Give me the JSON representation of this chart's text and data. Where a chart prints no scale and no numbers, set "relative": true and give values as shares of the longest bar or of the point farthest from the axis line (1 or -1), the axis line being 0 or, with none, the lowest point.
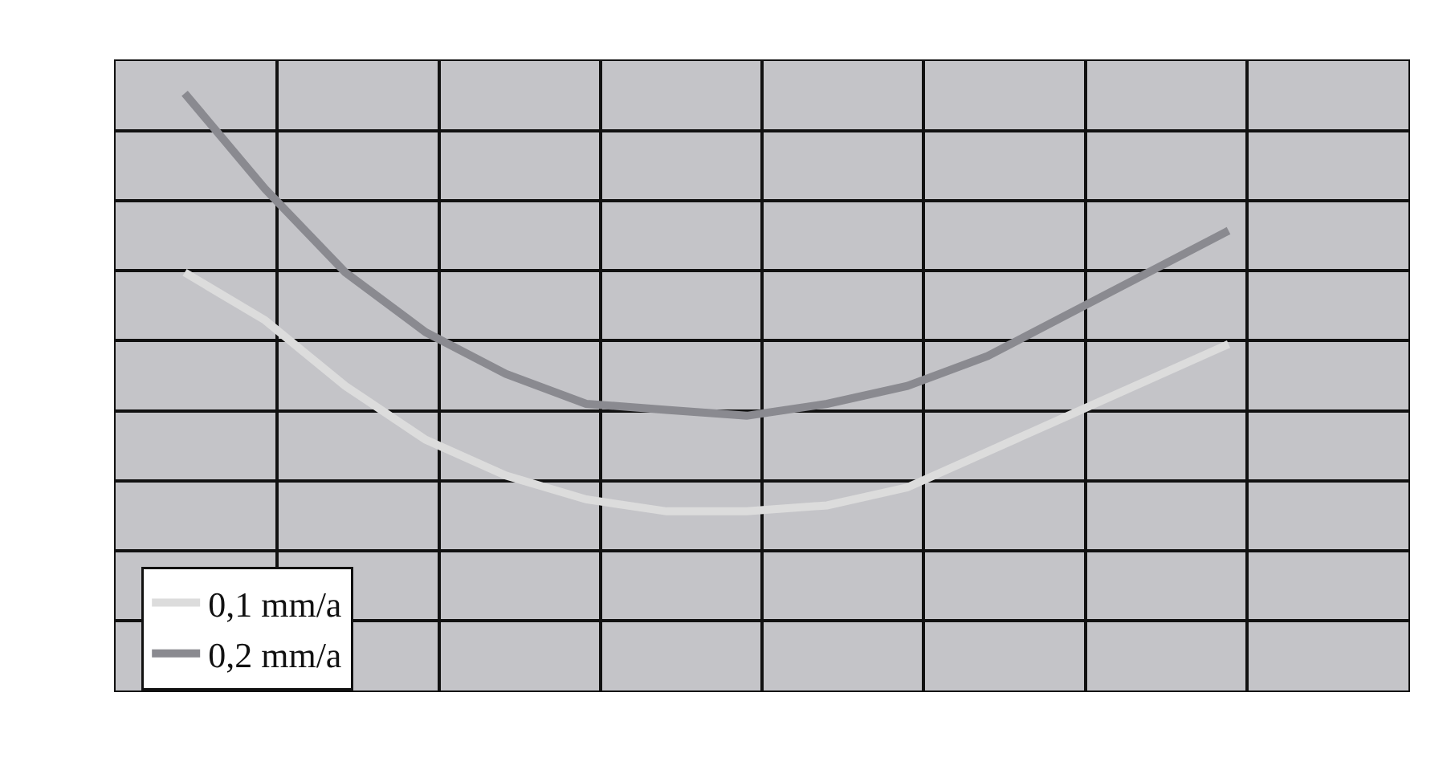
{
  "chart_data": {
    "type": "line",
    "relative": true,
    "grid": true,
    "legend": "bottom left",
    "line_style": "solid",
    "marker": "none",
    "categories": [
      null,
      null,
      null,
      null,
      null,
      null,
      null,
      null,
      null,
      null,
      null,
      null,
      null,
      null
    ],
    "series": [
      {
        "name": "0,1 mm/a",
        "color": "#dcdcdc",
        "values": [
          0.7,
          0.62,
          0.51,
          0.42,
          0.36,
          0.32,
          0.3,
          0.3,
          0.31,
          0.34,
          0.4,
          0.46,
          0.52,
          0.58
        ]
      },
      {
        "name": "0,2 mm/a",
        "color": "#8a8a90",
        "values": [
          1.0,
          0.84,
          0.7,
          0.6,
          0.53,
          0.48,
          0.47,
          0.46,
          0.48,
          0.51,
          0.56,
          0.63,
          0.7,
          0.77
        ]
      }
    ]
  }
}
